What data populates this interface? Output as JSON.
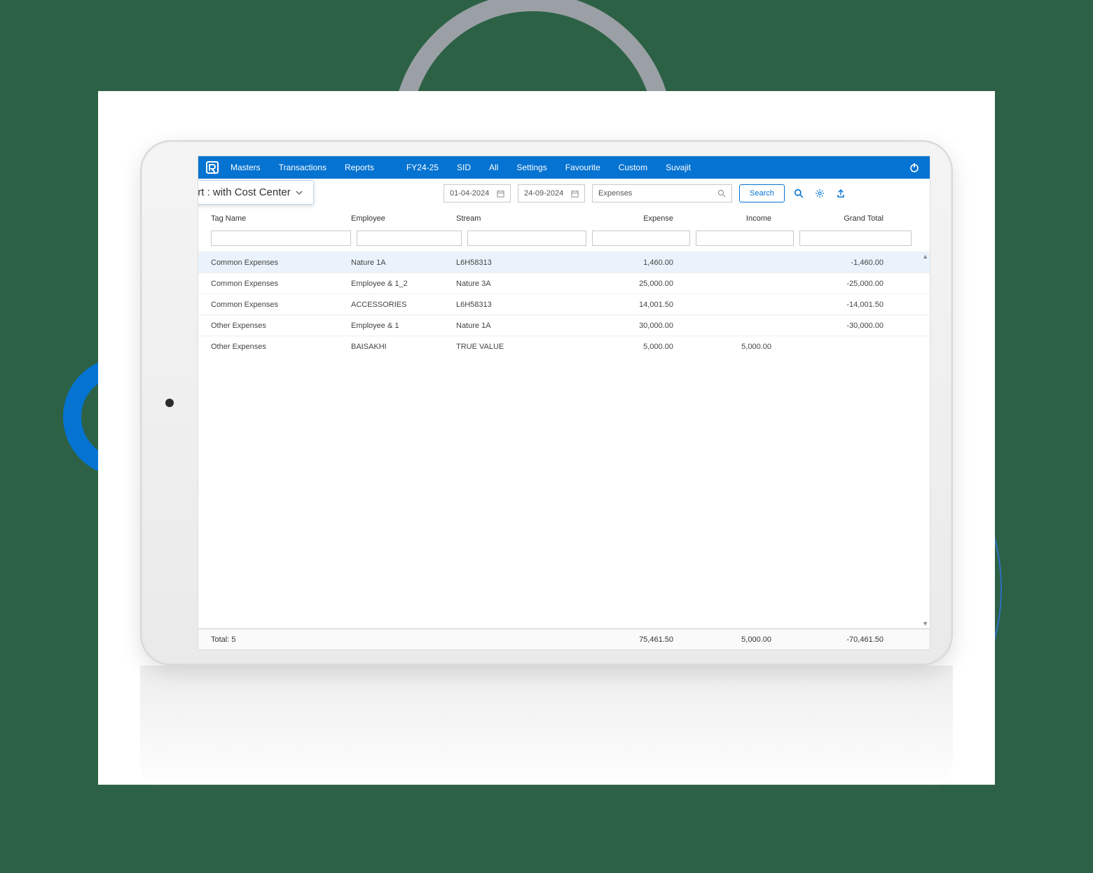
{
  "colors": {
    "page_bg": "#2d6145",
    "primary": "#0573d1",
    "ring_grey": "#9aa0a6",
    "ring_blue_thin": "#2e6fc4",
    "card_bg": "#ffffff",
    "border": "#c9c9c9",
    "row_selected_bg": "#eaf3fc",
    "text": "#444444"
  },
  "nav": {
    "items": [
      "Masters",
      "Transactions",
      "Reports",
      "FY24-25",
      "SID",
      "All",
      "Settings",
      "Favourite",
      "Custom",
      "Suvajit"
    ]
  },
  "report": {
    "title": "Tag Report : with Cost Center"
  },
  "filters": {
    "date_from": "01-04-2024",
    "date_to": "24-09-2024",
    "category": "Expenses",
    "search_label": "Search"
  },
  "table": {
    "columns": [
      "Tag Name",
      "Employee",
      "Stream",
      "Expense",
      "Income",
      "Grand Total"
    ],
    "column_align": [
      "left",
      "left",
      "left",
      "right",
      "right",
      "right"
    ],
    "rows": [
      {
        "tag": "Common Expenses",
        "employee": "Nature 1A",
        "stream": "L6H58313",
        "expense": "1,460.00",
        "income": "",
        "total": "-1,460.00",
        "selected": true
      },
      {
        "tag": "Common Expenses",
        "employee": "Employee & 1_2",
        "stream": "Nature 3A",
        "expense": "25,000.00",
        "income": "",
        "total": "-25,000.00"
      },
      {
        "tag": "Common Expenses",
        "employee": "ACCESSORIES",
        "stream": "L6H58313",
        "expense": "14,001.50",
        "income": "",
        "total": "-14,001.50"
      },
      {
        "tag": "Other Expenses",
        "employee": "Employee & 1",
        "stream": "Nature 1A",
        "expense": "30,000.00",
        "income": "",
        "total": "-30,000.00"
      },
      {
        "tag": "Other Expenses",
        "employee": "BAISAKHI",
        "stream": "TRUE VALUE",
        "expense": "5,000.00",
        "income": "5,000.00",
        "total": ""
      }
    ],
    "footer": {
      "label": "Total: 5",
      "expense": "75,461.50",
      "income": "5,000.00",
      "total": "-70,461.50"
    }
  }
}
